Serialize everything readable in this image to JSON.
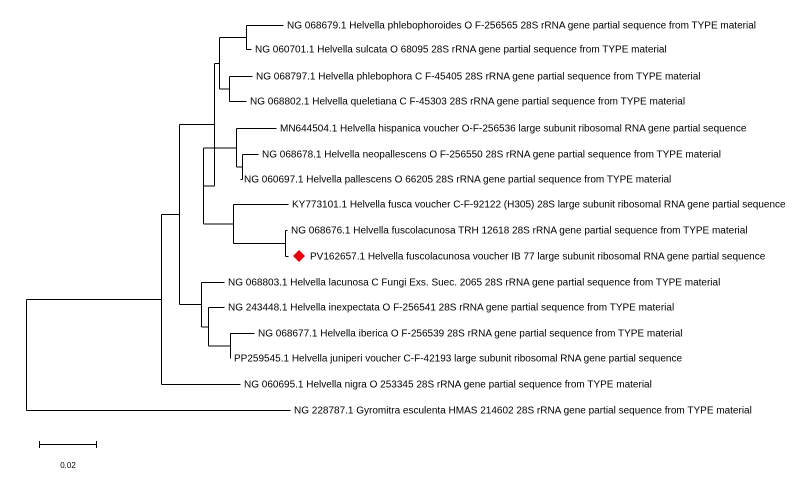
{
  "tree": {
    "leaves": [
      {
        "id": "ng068679",
        "label": "NG 068679.1 Helvella phlebophoroides O F-256565 28S rRNA gene partial sequence from TYPE material"
      },
      {
        "id": "ng060701",
        "label": "NG 060701.1 Helvella sulcata O 68095 28S rRNA gene partial sequence from TYPE material"
      },
      {
        "id": "ng068797",
        "label": "NG 068797.1 Helvella phlebophora C F-45405 28S rRNA gene partial sequence from TYPE material"
      },
      {
        "id": "ng068802",
        "label": "NG 068802.1 Helvella queletiana C F-45303 28S rRNA gene partial sequence from TYPE material"
      },
      {
        "id": "mn644504",
        "label": "MN644504.1 Helvella hispanica voucher O-F-256536 large subunit ribosomal RNA gene partial sequence"
      },
      {
        "id": "ng068678",
        "label": "NG 068678.1 Helvella neopallescens O F-256550 28S rRNA gene partial sequence from TYPE material"
      },
      {
        "id": "ng060697",
        "label": "NG 060697.1 Helvella pallescens O 66205 28S rRNA gene partial sequence from TYPE material"
      },
      {
        "id": "ky773101",
        "label": "KY773101.1 Helvella fusca voucher C-F-92122 (H305) 28S large subunit ribosomal RNA gene partial sequence"
      },
      {
        "id": "ng068676",
        "label": "NG 068676.1 Helvella fuscolacunosa TRH 12618 28S rRNA gene partial sequence from TYPE material"
      },
      {
        "id": "pv162657",
        "label": "PV162657.1 Helvella fuscolacunosa voucher IB 77 large subunit ribosomal RNA gene partial sequence",
        "highlight": true
      },
      {
        "id": "ng068803",
        "label": "NG 068803.1 Helvella lacunosa C Fungi Exs. Suec. 2065 28S rRNA gene partial sequence from TYPE material"
      },
      {
        "id": "ng243448",
        "label": "NG 243448.1 Helvella inexpectata O F-256541 28S rRNA gene partial sequence from TYPE material"
      },
      {
        "id": "ng068677",
        "label": "NG 068677.1 Helvella iberica O F-256539 28S rRNA gene partial sequence from TYPE material"
      },
      {
        "id": "pp259545",
        "label": "PP259545.1 Helvella juniperi voucher C-F-42193 large subunit ribosomal RNA gene partial sequence"
      },
      {
        "id": "ng060695",
        "label": "NG 060695.1 Helvella nigra O 253345 28S rRNA gene partial sequence from TYPE material"
      },
      {
        "id": "ng228787",
        "label": "NG 228787.1 Gyromitra esculenta HMAS 214602 28S rRNA gene partial sequence from TYPE material"
      }
    ],
    "highlight_marker": "red-diamond",
    "highlight_color": "#e8000b",
    "line_color": "#000000",
    "scale_bar": {
      "value": 0.02,
      "label": "0.02"
    }
  }
}
